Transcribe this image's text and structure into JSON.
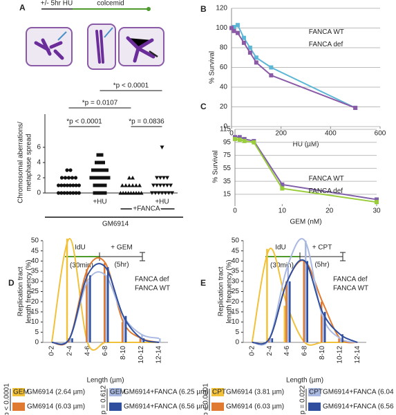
{
  "chart_data": [
    {
      "panel": "A",
      "type": "strip",
      "timeline": {
        "pre": "+/- 5hr HU",
        "main": "colcemid"
      },
      "ylabel": [
        "Chromosomal aberrations/",
        "metaphase spread"
      ],
      "ylim": [
        0,
        8
      ],
      "yticks": [
        0,
        2,
        4,
        6
      ],
      "categories": [
        null,
        "+HU",
        null,
        "+HU"
      ],
      "markers": [
        "circle",
        "square",
        "triangle",
        "triangle-down"
      ],
      "values": [
        [
          0,
          0,
          0,
          0,
          0,
          0,
          0,
          0,
          1,
          1,
          1,
          1,
          1,
          1,
          1,
          1,
          2,
          2,
          2,
          2,
          2,
          3,
          3
        ],
        [
          0,
          0,
          0,
          0,
          1,
          1,
          1,
          1,
          2,
          2,
          2,
          2,
          2,
          2,
          3,
          3,
          3,
          3,
          3,
          4,
          4,
          4,
          5,
          5
        ],
        [
          0,
          0,
          0,
          0,
          0,
          0,
          0,
          0,
          0,
          1,
          1,
          1,
          1,
          1,
          1,
          2,
          2
        ],
        [
          0,
          0,
          0,
          0,
          0,
          0,
          0,
          1,
          1,
          1,
          1,
          1,
          1,
          2,
          2,
          2,
          2,
          6
        ]
      ],
      "group_labels": [
        "+FANCA",
        "GM6914"
      ],
      "comparisons": [
        {
          "label": "*p < 0.0001",
          "from": 0,
          "to": 1
        },
        {
          "label": "*p = 0.0107",
          "from": 0,
          "to": 2
        },
        {
          "label": "*p < 0.0001",
          "from": 1,
          "to": 3
        },
        {
          "label": "*p = 0.0836",
          "from": 2,
          "to": 3
        }
      ]
    },
    {
      "panel": "B",
      "type": "line",
      "xlabel": "HU (µM)",
      "ylabel": "% Survival",
      "x": [
        0,
        10,
        25,
        50,
        75,
        100,
        160,
        500
      ],
      "xlim": [
        0,
        600
      ],
      "xticks": [
        0,
        200,
        400,
        600
      ],
      "ylim": [
        0,
        120
      ],
      "yticks": [
        0,
        20,
        40,
        60,
        80,
        100,
        120
      ],
      "grid": true,
      "series": [
        {
          "name": "FANCA WT",
          "color": "#5cb6d6",
          "values": [
            100,
            101,
            103,
            90,
            80,
            70,
            60,
            19
          ]
        },
        {
          "name": "FANCA def",
          "color": "#8a5aa6",
          "values": [
            100,
            97,
            95,
            85,
            75,
            65,
            52,
            19
          ]
        }
      ]
    },
    {
      "panel": "C",
      "type": "line",
      "xlabel": "GEM (nM)",
      "ylabel": "% Survival",
      "x": [
        0,
        1,
        2,
        4,
        10,
        30
      ],
      "xlim": [
        0,
        30
      ],
      "xticks": [
        0,
        10,
        20,
        30
      ],
      "ylim": [
        0,
        115
      ],
      "yticks": [
        15,
        35,
        55,
        75,
        95,
        115
      ],
      "grid": true,
      "series": [
        {
          "name": "FANCA WT",
          "color": "#8060a8",
          "values": [
            103,
            103,
            100,
            97,
            30,
            7
          ]
        },
        {
          "name": "FANCA def",
          "color": "#9acd3a",
          "values": [
            100,
            99,
            97,
            95,
            24,
            3
          ]
        }
      ]
    },
    {
      "panel": "D",
      "type": "curve",
      "xlabel": "Length (µm)",
      "ylabel": [
        "Replication tract",
        "length frequency (%)"
      ],
      "timeline": {
        "label": "IdU",
        "duration": "(30min)",
        "treatment": "+ GEM",
        "treatment_duration": "(5hr)"
      },
      "categories": [
        "0-2",
        "2-4",
        "4-6",
        "6-8",
        "8-10",
        "10-12",
        "12-14"
      ],
      "ylim": [
        0,
        50
      ],
      "yticks": [
        0,
        5,
        10,
        15,
        20,
        25,
        30,
        35,
        40,
        45,
        50
      ],
      "annotations": [
        {
          "text": "FANCA def",
          "color": "#e07a30"
        },
        {
          "text": "FANCA WT",
          "color": "#2f4f9e"
        }
      ],
      "p_values": [
        "p < 0.0001",
        "p = 0.612"
      ],
      "series": [
        {
          "tag": "GEM",
          "name": "GM6914 (2.64 µm)",
          "color": "#f2c13a",
          "values": [
            0,
            51,
            0,
            0,
            0,
            0,
            0
          ]
        },
        {
          "name": "GM6914 (6.03 µm)",
          "color": "#e07a30",
          "values": [
            0,
            2,
            36,
            39,
            10,
            2,
            0
          ]
        },
        {
          "tag": "GEM",
          "name": "GM6914+FANCA (6.25 µm)",
          "color": "#a9b9e2",
          "values": [
            0,
            2,
            30,
            33,
            13,
            4,
            2
          ]
        },
        {
          "name": "GM6914+FANCA (6.56 µm)",
          "color": "#2f4f9e",
          "values": [
            0,
            2,
            33,
            37,
            13,
            2,
            0
          ]
        }
      ]
    },
    {
      "panel": "E",
      "type": "curve",
      "xlabel": "Length (µm)",
      "ylabel": [
        "Replication tract",
        "length frequency (%)"
      ],
      "timeline": {
        "label": "IdU",
        "duration": "(30min)",
        "treatment": "+ CPT",
        "treatment_duration": "(5hr)"
      },
      "categories": [
        "0-2",
        "2-4",
        "4-6",
        "6-8",
        "8-10",
        "10-12",
        "12-14"
      ],
      "ylim": [
        0,
        50
      ],
      "yticks": [
        0,
        5,
        10,
        15,
        20,
        25,
        30,
        35,
        40,
        45,
        50
      ],
      "annotations": [
        {
          "text": "FANCA def",
          "color": "#e07a30"
        },
        {
          "text": "FANCA WT",
          "color": "#2f4f9e"
        }
      ],
      "p_values": [
        "p < 0.0001",
        "p = 0.022"
      ],
      "series": [
        {
          "tag": "CPT",
          "name": "GM6914 (3.81 µm)",
          "color": "#f2c13a",
          "values": [
            0,
            46,
            18,
            0,
            0,
            0,
            0
          ]
        },
        {
          "name": "GM6914 (6.03 µm)",
          "color": "#e07a30",
          "values": [
            0,
            2,
            30,
            40,
            20,
            2,
            0
          ]
        },
        {
          "tag": "CPT",
          "name": "GM6914+FANCA (6.04 µm)",
          "color": "#a9b9e2",
          "values": [
            0,
            2,
            37,
            50,
            13,
            2,
            0
          ]
        },
        {
          "name": "GM6914+FANCA (6.56 µm)",
          "color": "#2f4f9e",
          "values": [
            0,
            2,
            30,
            40,
            15,
            4,
            0
          ]
        }
      ]
    }
  ]
}
